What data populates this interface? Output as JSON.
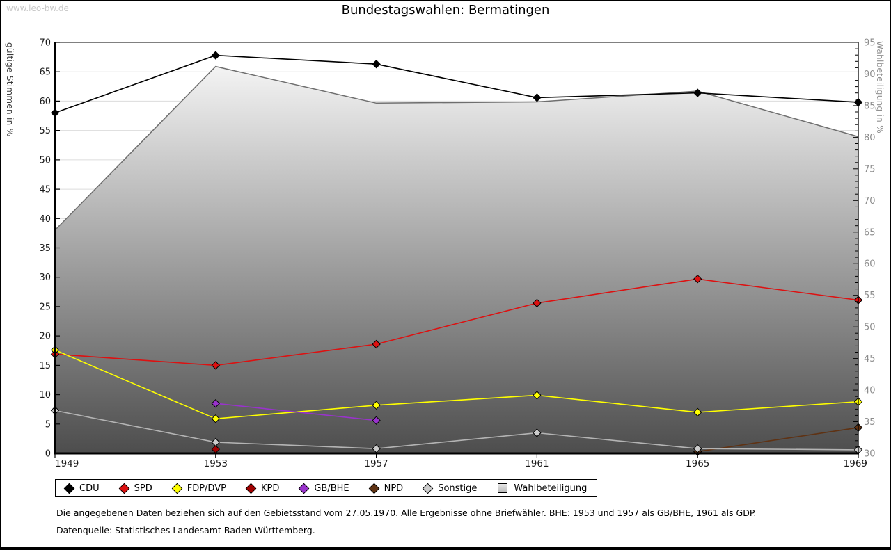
{
  "watermark": "www.leo-bw.de",
  "title": "Bundestagswahlen: Bermatingen",
  "footnotes": {
    "note1": "Die angegebenen Daten beziehen sich auf den Gebietsstand vom 27.05.1970. Alle Ergebnisse ohne Briefwähler. BHE: 1953 und 1957 als GB/BHE, 1961 als GDP.",
    "note2": "Datenquelle: Statistisches Landesamt Baden-Württemberg."
  },
  "chart_data": {
    "type": "line",
    "title": "Bundestagswahlen: Bermatingen",
    "x": [
      1949,
      1953,
      1957,
      1961,
      1965,
      1969
    ],
    "grid": true,
    "legend_position": "bottom",
    "left_axis": {
      "label": "gültige Stimmen in %",
      "min": 0,
      "max": 70,
      "tick_step": 5,
      "ticks": [
        0,
        5,
        10,
        15,
        20,
        25,
        30,
        35,
        40,
        45,
        50,
        55,
        60,
        65,
        70
      ]
    },
    "right_axis": {
      "label": "Wahlbeteiligung in %",
      "min": 30,
      "max": 95,
      "tick_step": 5,
      "minor_tick_step": 1,
      "ticks": [
        30,
        35,
        40,
        45,
        50,
        55,
        60,
        65,
        70,
        75,
        80,
        85,
        90,
        95
      ]
    },
    "series": [
      {
        "name": "CDU",
        "axis": "left",
        "color": "#000000",
        "marker": "diamond",
        "values": [
          58.0,
          67.8,
          66.3,
          60.6,
          61.4,
          59.8
        ]
      },
      {
        "name": "SPD",
        "axis": "left",
        "color": "#dd1111",
        "marker": "diamond",
        "values": [
          16.9,
          15.0,
          18.6,
          25.6,
          29.7,
          26.1
        ]
      },
      {
        "name": "FDP/DVP",
        "axis": "left",
        "color": "#ffff00",
        "marker": "diamond",
        "values": [
          17.6,
          5.9,
          8.2,
          9.9,
          7.0,
          8.8
        ]
      },
      {
        "name": "KPD",
        "axis": "left",
        "color": "#a00000",
        "marker": "diamond",
        "values": [
          null,
          0.7,
          null,
          null,
          null,
          null
        ]
      },
      {
        "name": "GB/BHE",
        "axis": "left",
        "color": "#9933cc",
        "marker": "diamond",
        "values": [
          null,
          8.5,
          5.6,
          null,
          null,
          null
        ]
      },
      {
        "name": "NPD",
        "axis": "left",
        "color": "#5f3213",
        "marker": "diamond",
        "values": [
          null,
          null,
          null,
          null,
          0.3,
          4.4
        ]
      },
      {
        "name": "Sonstige",
        "axis": "left",
        "color": "#cccccc",
        "line_color": "#b4b4b4",
        "marker": "diamond",
        "values": [
          7.3,
          1.9,
          0.8,
          3.5,
          0.8,
          0.6
        ]
      },
      {
        "name": "Wahlbeteiligung",
        "axis": "right",
        "color": "#6e6e6e",
        "marker": "square",
        "area": true,
        "area_top_color": "#fefefe",
        "area_bottom_color": "#4d4d4d",
        "values": [
          65.3,
          91.2,
          85.4,
          85.6,
          87.3,
          80.1
        ]
      }
    ]
  }
}
